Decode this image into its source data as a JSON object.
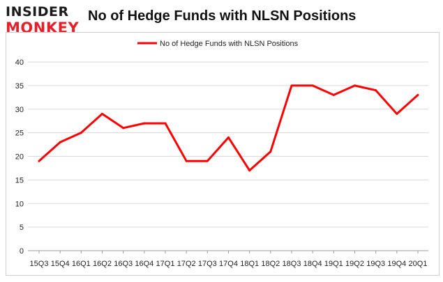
{
  "logo": {
    "top": "INSIDER",
    "bottom": "MONKEY"
  },
  "chart_data": {
    "type": "line",
    "title": "No of Hedge Funds with NLSN Positions",
    "categories": [
      "15Q3",
      "15Q4",
      "16Q1",
      "16Q2",
      "16Q3",
      "16Q4",
      "17Q1",
      "17Q2",
      "17Q3",
      "17Q4",
      "18Q1",
      "18Q2",
      "18Q3",
      "18Q4",
      "19Q1",
      "19Q2",
      "19Q3",
      "19Q4",
      "20Q1"
    ],
    "series": [
      {
        "name": "No of Hedge Funds with NLSN Positions",
        "values": [
          19,
          23,
          25,
          29,
          26,
          27,
          27,
          19,
          19,
          24,
          17,
          21,
          35,
          35,
          33,
          35,
          34,
          29,
          33
        ]
      }
    ],
    "ylim": [
      0,
      40
    ],
    "yticks": [
      0,
      5,
      10,
      15,
      20,
      25,
      30,
      35,
      40
    ],
    "xlabel": "",
    "ylabel": "",
    "grid": true,
    "legend": "top-center",
    "colors": {
      "series": "#ff0000",
      "grid": "#d9d9d9"
    }
  }
}
